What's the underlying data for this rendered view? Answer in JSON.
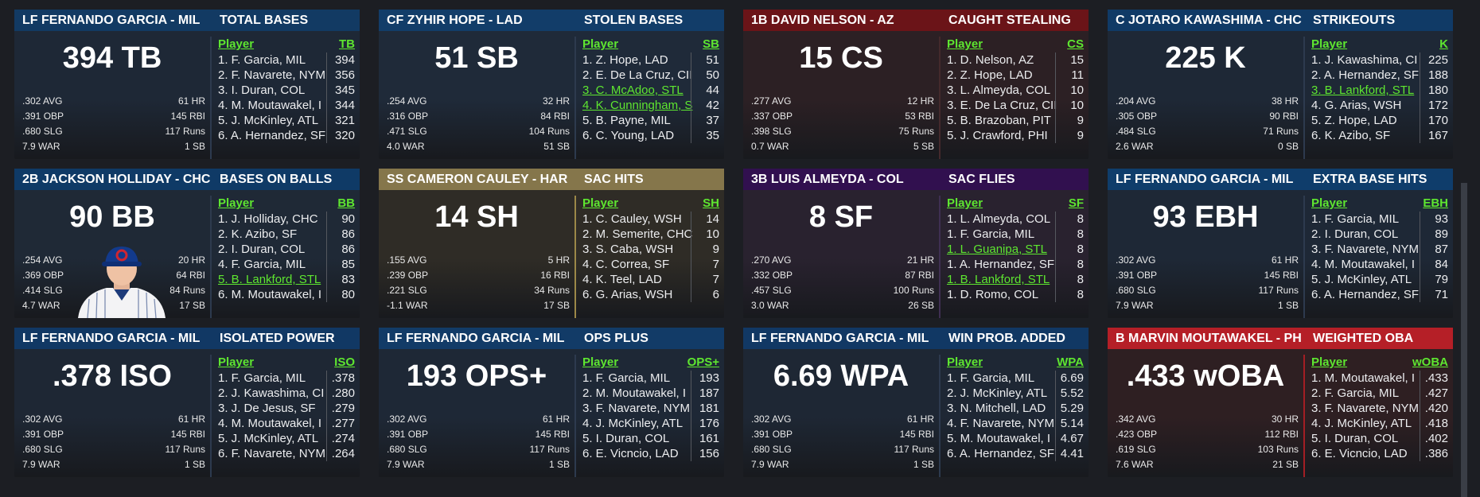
{
  "colors": {
    "blue_header": "#103a66",
    "red_header": "#6e1518",
    "purple_header": "#32104f",
    "gold_header": "#8a7a4a",
    "bright_red_header": "#b51f27",
    "green_link": "#5ee630"
  },
  "cards": [
    {
      "player": "LF FERNANDO GARCIA - MIL",
      "category": "TOTAL BASES",
      "big": "394 TB",
      "stats": [
        [
          ".302 AVG",
          "61 HR"
        ],
        [
          ".391 OBP",
          "145 RBI"
        ],
        [
          ".680 SLG",
          "117 Runs"
        ],
        [
          "7.9 WAR",
          "1 SB"
        ]
      ],
      "col_player": "Player",
      "col_stat": "TB",
      "rows": [
        [
          "1. F. Garcia, MIL",
          "394"
        ],
        [
          "2. F. Navarete, NYM",
          "356"
        ],
        [
          "3. I. Duran, COL",
          "345"
        ],
        [
          "4. M. Moutawakel, I",
          "344"
        ],
        [
          "5. J. McKinley, ATL",
          "321"
        ],
        [
          "6. A. Hernandez, SF",
          "320"
        ]
      ],
      "highlights": []
    },
    {
      "player": "CF ZYHIR HOPE - LAD",
      "category": "STOLEN BASES",
      "big": "51 SB",
      "stats": [
        [
          ".254 AVG",
          "32 HR"
        ],
        [
          ".316 OBP",
          "84 RBI"
        ],
        [
          ".471 SLG",
          "104 Runs"
        ],
        [
          "4.0 WAR",
          "51 SB"
        ]
      ],
      "col_player": "Player",
      "col_stat": "SB",
      "rows": [
        [
          "1. Z. Hope, LAD",
          "51"
        ],
        [
          "2. E. De La Cruz, CII",
          "50"
        ],
        [
          "3. C. McAdoo, STL",
          "44"
        ],
        [
          "4. K. Cunningham, S",
          "42"
        ],
        [
          "5. B. Payne, MIL",
          "37"
        ],
        [
          "6. C. Young, LAD",
          "35"
        ]
      ],
      "highlights": [
        2,
        3
      ]
    },
    {
      "player": "1B DAVID NELSON - AZ",
      "category": "CAUGHT STEALING",
      "big": "15 CS",
      "stats": [
        [
          ".277 AVG",
          "12 HR"
        ],
        [
          ".337 OBP",
          "53 RBI"
        ],
        [
          ".398 SLG",
          "75 Runs"
        ],
        [
          "0.7 WAR",
          "5 SB"
        ]
      ],
      "col_player": "Player",
      "col_stat": "CS",
      "rows": [
        [
          "1. D. Nelson, AZ",
          "15"
        ],
        [
          "2. Z. Hope, LAD",
          "11"
        ],
        [
          "3. L. Almeyda, COL",
          "10"
        ],
        [
          "3. E. De La Cruz, CII",
          "10"
        ],
        [
          "5. B. Brazoban, PIT",
          "9"
        ],
        [
          "5. J. Crawford, PHI",
          "9"
        ]
      ],
      "highlights": []
    },
    {
      "player": "C JOTARO KAWASHIMA - CHC",
      "category": "STRIKEOUTS",
      "big": "225 K",
      "stats": [
        [
          ".204 AVG",
          "38 HR"
        ],
        [
          ".305 OBP",
          "90 RBI"
        ],
        [
          ".484 SLG",
          "71 Runs"
        ],
        [
          "2.6 WAR",
          "0 SB"
        ]
      ],
      "col_player": "Player",
      "col_stat": "K",
      "rows": [
        [
          "1. J. Kawashima, CI",
          "225"
        ],
        [
          "2. A. Hernandez, SF",
          "188"
        ],
        [
          "3. B. Lankford, STL",
          "180"
        ],
        [
          "4. G. Arias, WSH",
          "172"
        ],
        [
          "5. Z. Hope, LAD",
          "170"
        ],
        [
          "6. K. Azibo, SF",
          "167"
        ]
      ],
      "highlights": [
        2
      ]
    },
    {
      "player": "2B JACKSON HOLLIDAY - CHC",
      "category": "BASES ON BALLS",
      "big": "90 BB",
      "stats": [
        [
          ".254 AVG",
          "20 HR"
        ],
        [
          ".369 OBP",
          "64 RBI"
        ],
        [
          ".414 SLG",
          "84 Runs"
        ],
        [
          "4.7 WAR",
          "17 SB"
        ]
      ],
      "col_player": "Player",
      "col_stat": "BB",
      "rows": [
        [
          "1. J. Holliday, CHC",
          "90"
        ],
        [
          "2. K. Azibo, SF",
          "86"
        ],
        [
          "2. I. Duran, COL",
          "86"
        ],
        [
          "4. F. Garcia, MIL",
          "85"
        ],
        [
          "5. B. Lankford, STL",
          "83"
        ],
        [
          "6. M. Moutawakel, I",
          "80"
        ]
      ],
      "highlights": [
        4
      ]
    },
    {
      "player": "SS CAMERON CAULEY - HAR",
      "category": "SAC HITS",
      "big": "14 SH",
      "stats": [
        [
          ".155 AVG",
          "5 HR"
        ],
        [
          ".239 OBP",
          "16 RBI"
        ],
        [
          ".221 SLG",
          "34 Runs"
        ],
        [
          "-1.1 WAR",
          "17 SB"
        ]
      ],
      "col_player": "Player",
      "col_stat": "SH",
      "rows": [
        [
          "1. C. Cauley, WSH",
          "14"
        ],
        [
          "2. M. Semerite, CHC",
          "10"
        ],
        [
          "3. S. Caba, WSH",
          "9"
        ],
        [
          "4. C. Correa, SF",
          "7"
        ],
        [
          "4. K. Teel, LAD",
          "7"
        ],
        [
          "6. G. Arias, WSH",
          "6"
        ]
      ],
      "highlights": []
    },
    {
      "player": "3B LUIS ALMEYDA - COL",
      "category": "SAC FLIES",
      "big": "8 SF",
      "stats": [
        [
          ".270 AVG",
          "21 HR"
        ],
        [
          ".332 OBP",
          "87 RBI"
        ],
        [
          ".457 SLG",
          "100 Runs"
        ],
        [
          "3.0 WAR",
          "26 SB"
        ]
      ],
      "col_player": "Player",
      "col_stat": "SF",
      "rows": [
        [
          "1. L. Almeyda, COL",
          "8"
        ],
        [
          "1. F. Garcia, MIL",
          "8"
        ],
        [
          "1. L. Guanipa, STL",
          "8"
        ],
        [
          "1. A. Hernandez, SF",
          "8"
        ],
        [
          "1. B. Lankford, STL",
          "8"
        ],
        [
          "1. D. Romo, COL",
          "8"
        ]
      ],
      "highlights": [
        2,
        4
      ]
    },
    {
      "player": "LF FERNANDO GARCIA - MIL",
      "category": "EXTRA BASE HITS",
      "big": "93 EBH",
      "stats": [
        [
          ".302 AVG",
          "61 HR"
        ],
        [
          ".391 OBP",
          "145 RBI"
        ],
        [
          ".680 SLG",
          "117 Runs"
        ],
        [
          "7.9 WAR",
          "1 SB"
        ]
      ],
      "col_player": "Player",
      "col_stat": "EBH",
      "rows": [
        [
          "1. F. Garcia, MIL",
          "93"
        ],
        [
          "2. I. Duran, COL",
          "89"
        ],
        [
          "3. F. Navarete, NYM",
          "87"
        ],
        [
          "4. M. Moutawakel, I",
          "84"
        ],
        [
          "5. J. McKinley, ATL",
          "79"
        ],
        [
          "6. A. Hernandez, SF",
          "71"
        ]
      ],
      "highlights": []
    },
    {
      "player": "LF FERNANDO GARCIA - MIL",
      "category": "ISOLATED POWER",
      "big": ".378 ISO",
      "stats": [
        [
          ".302 AVG",
          "61 HR"
        ],
        [
          ".391 OBP",
          "145 RBI"
        ],
        [
          ".680 SLG",
          "117 Runs"
        ],
        [
          "7.9 WAR",
          "1 SB"
        ]
      ],
      "col_player": "Player",
      "col_stat": "ISO",
      "rows": [
        [
          "1. F. Garcia, MIL",
          ".378"
        ],
        [
          "2. J. Kawashima, CI",
          ".280"
        ],
        [
          "3. J. De Jesus, SF",
          ".279"
        ],
        [
          "4. M. Moutawakel, I",
          ".277"
        ],
        [
          "5. J. McKinley, ATL",
          ".274"
        ],
        [
          "6. F. Navarete, NYM",
          ".264"
        ]
      ],
      "highlights": []
    },
    {
      "player": "LF FERNANDO GARCIA - MIL",
      "category": "OPS PLUS",
      "big": "193 OPS+",
      "stats": [
        [
          ".302 AVG",
          "61 HR"
        ],
        [
          ".391 OBP",
          "145 RBI"
        ],
        [
          ".680 SLG",
          "117 Runs"
        ],
        [
          "7.9 WAR",
          "1 SB"
        ]
      ],
      "col_player": "Player",
      "col_stat": "OPS+",
      "rows": [
        [
          "1. F. Garcia, MIL",
          "193"
        ],
        [
          "2. M. Moutawakel, I",
          "187"
        ],
        [
          "3. F. Navarete, NYM",
          "181"
        ],
        [
          "4. J. McKinley, ATL",
          "176"
        ],
        [
          "5. I. Duran, COL",
          "161"
        ],
        [
          "6. E. Vicncio, LAD",
          "156"
        ]
      ],
      "highlights": []
    },
    {
      "player": "LF FERNANDO GARCIA - MIL",
      "category": "WIN PROB. ADDED",
      "big": "6.69 WPA",
      "stats": [
        [
          ".302 AVG",
          "61 HR"
        ],
        [
          ".391 OBP",
          "145 RBI"
        ],
        [
          ".680 SLG",
          "117 Runs"
        ],
        [
          "7.9 WAR",
          "1 SB"
        ]
      ],
      "col_player": "Player",
      "col_stat": "WPA",
      "rows": [
        [
          "1. F. Garcia, MIL",
          "6.69"
        ],
        [
          "2. J. McKinley, ATL",
          "5.52"
        ],
        [
          "3. N. Mitchell, LAD",
          "5.29"
        ],
        [
          "4. F. Navarete, NYM",
          "5.14"
        ],
        [
          "5. M. Moutawakel, I",
          "4.67"
        ],
        [
          "6. A. Hernandez, SF",
          "4.41"
        ]
      ],
      "highlights": []
    },
    {
      "player": "B MARVIN MOUTAWAKEL - PH",
      "category": "WEIGHTED OBA",
      "big": ".433 wOBA",
      "stats": [
        [
          ".342 AVG",
          "30 HR"
        ],
        [
          ".423 OBP",
          "112 RBI"
        ],
        [
          ".619 SLG",
          "103 Runs"
        ],
        [
          "7.6 WAR",
          "21 SB"
        ]
      ],
      "col_player": "Player",
      "col_stat": "wOBA",
      "rows": [
        [
          "1. M. Moutawakel, I",
          ".433"
        ],
        [
          "2. F. Garcia, MIL",
          ".427"
        ],
        [
          "3. F. Navarete, NYM",
          ".420"
        ],
        [
          "4. J. McKinley, ATL",
          ".418"
        ],
        [
          "5. I. Duran, COL",
          ".402"
        ],
        [
          "6. E. Vicncio, LAD",
          ".386"
        ]
      ],
      "highlights": []
    }
  ]
}
